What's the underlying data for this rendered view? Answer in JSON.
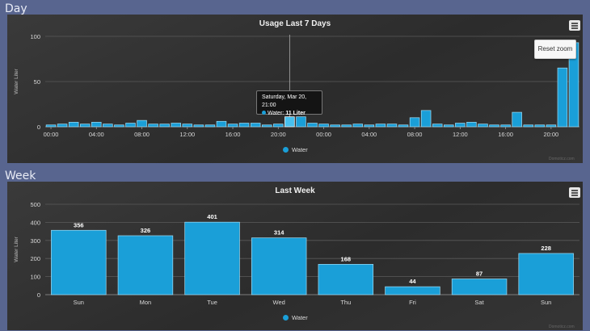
{
  "sections": {
    "day": "Day",
    "week": "Week"
  },
  "day_chart": {
    "menu_icon": "hamburger-menu-icon",
    "reset_zoom": "Reset zoom",
    "tooltip": {
      "date": "Saturday, Mar 20, 21:00",
      "series": "Water:",
      "value": "11 Liter"
    },
    "legend": "Water",
    "credit": "Domoticz.com"
  },
  "week_chart": {
    "menu_icon": "hamburger-menu-icon",
    "legend": "Water",
    "credit": "Domoticz.com"
  },
  "chart_data": [
    {
      "type": "bar",
      "title": "Usage Last 7 Days",
      "ylabel": "Water Liter",
      "ylim": [
        0,
        100
      ],
      "yticks": [
        0,
        50,
        100
      ],
      "xticks": [
        "00:00",
        "04:00",
        "08:00",
        "12:00",
        "16:00",
        "20:00",
        "00:00",
        "04:00",
        "08:00",
        "12:00",
        "16:00",
        "20:00"
      ],
      "series": [
        {
          "name": "Water",
          "color": "#1a9fd8",
          "values": [
            2,
            3,
            5,
            3,
            5,
            3,
            2,
            4,
            7,
            3,
            3,
            4,
            3,
            2,
            2,
            6,
            3,
            4,
            4,
            2,
            3,
            11,
            11,
            4,
            3,
            2,
            2,
            3,
            2,
            3,
            3,
            2,
            10,
            18,
            3,
            2,
            4,
            5,
            3,
            2,
            2,
            16,
            2,
            2,
            2,
            65,
            93
          ]
        }
      ],
      "highlight_index": 21,
      "grid": true,
      "legend": "bottom-center"
    },
    {
      "type": "bar",
      "title": "Last Week",
      "ylabel": "Water Liter",
      "ylim": [
        0,
        500
      ],
      "yticks": [
        0,
        100,
        200,
        300,
        400,
        500
      ],
      "categories": [
        "Sun",
        "Mon",
        "Tue",
        "Wed",
        "Thu",
        "Fri",
        "Sat",
        "Sun"
      ],
      "series": [
        {
          "name": "Water",
          "color": "#1a9fd8",
          "values": [
            356,
            326,
            401,
            314,
            168,
            44,
            87,
            228
          ]
        }
      ],
      "data_labels": true,
      "grid": true,
      "legend": "bottom-center"
    }
  ]
}
